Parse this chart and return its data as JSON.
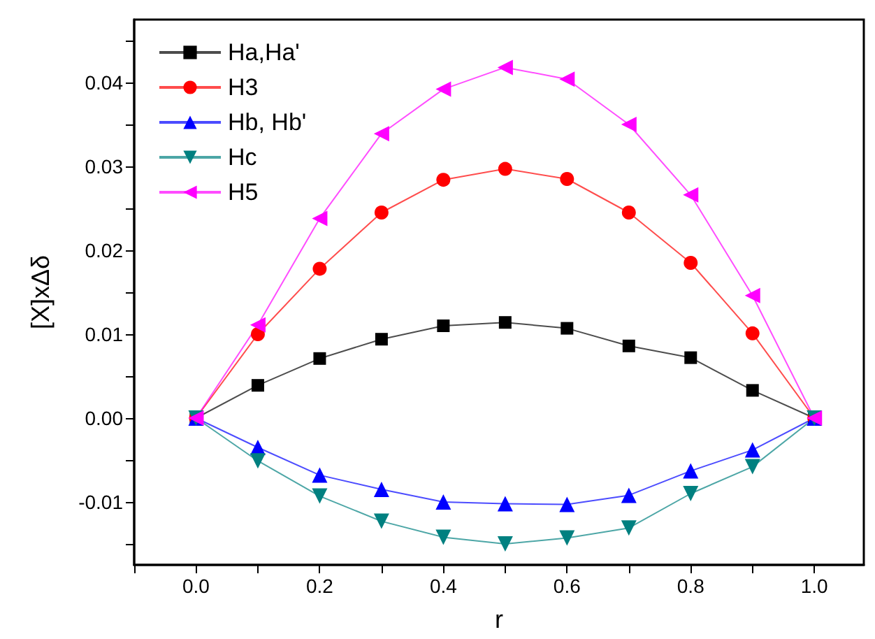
{
  "chart_data": {
    "type": "line",
    "xlabel": "r",
    "ylabel": "[X]xΔδ",
    "x": [
      0,
      0.1,
      0.2,
      0.3,
      0.4,
      0.5,
      0.6,
      0.7,
      0.8,
      0.9,
      1.0
    ],
    "series": [
      {
        "name": "Ha,Ha'",
        "color": "#000000",
        "marker": "square",
        "values": [
          0,
          0.0039,
          0.0071,
          0.0094,
          0.011,
          0.0114,
          0.0107,
          0.0086,
          0.0072,
          0.0033,
          0
        ]
      },
      {
        "name": "H3",
        "color": "#ff0000",
        "marker": "circle",
        "values": [
          0,
          0.01,
          0.0178,
          0.0245,
          0.0284,
          0.0297,
          0.0285,
          0.0245,
          0.0185,
          0.0101,
          0
        ]
      },
      {
        "name": "Hb, Hb'",
        "color": "#0000ff",
        "marker": "triangle",
        "values": [
          0,
          -0.0035,
          -0.0068,
          -0.0085,
          -0.01,
          -0.0102,
          -0.0103,
          -0.0092,
          -0.0063,
          -0.0038,
          0
        ]
      },
      {
        "name": "Hc",
        "color": "#008080",
        "marker": "triangle-down",
        "values": [
          0,
          -0.0051,
          -0.0093,
          -0.0123,
          -0.0142,
          -0.015,
          -0.0143,
          -0.0131,
          -0.009,
          -0.0058,
          0
        ]
      },
      {
        "name": "H5",
        "color": "#ff00ff",
        "marker": "triangle-left",
        "values": [
          0,
          0.0111,
          0.0238,
          0.0339,
          0.0392,
          0.0418,
          0.0404,
          0.035,
          0.0266,
          0.0146,
          0
        ]
      }
    ],
    "xlim": [
      -0.1,
      1.08
    ],
    "xticks": [
      {
        "value": -0.1,
        "label": null
      },
      {
        "value": 0,
        "label": "0.0"
      },
      {
        "value": 0.1,
        "label": null
      },
      {
        "value": 0.2,
        "label": "0.2"
      },
      {
        "value": 0.3,
        "label": null
      },
      {
        "value": 0.4,
        "label": "0.4"
      },
      {
        "value": 0.5,
        "label": null
      },
      {
        "value": 0.6,
        "label": "0.6"
      },
      {
        "value": 0.7,
        "label": null
      },
      {
        "value": 0.8,
        "label": "0.8"
      },
      {
        "value": 0.9,
        "label": null
      },
      {
        "value": 1.0,
        "label": "1.0"
      }
    ],
    "ylim": [
      -0.0175,
      0.0475
    ],
    "yticks": [
      {
        "value": -0.015,
        "label": null
      },
      {
        "value": -0.01,
        "label": "-0.01"
      },
      {
        "value": -0.005,
        "label": null
      },
      {
        "value": 0,
        "label": "0.00"
      },
      {
        "value": 0.005,
        "label": null
      },
      {
        "value": 0.01,
        "label": "0.01"
      },
      {
        "value": 0.015,
        "label": null
      },
      {
        "value": 0.02,
        "label": "0.02"
      },
      {
        "value": 0.025,
        "label": null
      },
      {
        "value": 0.03,
        "label": "0.03"
      },
      {
        "value": 0.035,
        "label": null
      },
      {
        "value": 0.04,
        "label": "0.04"
      },
      {
        "value": 0.045,
        "label": null
      }
    ],
    "grid": false,
    "legend": "top left",
    "line_style": "solid"
  }
}
